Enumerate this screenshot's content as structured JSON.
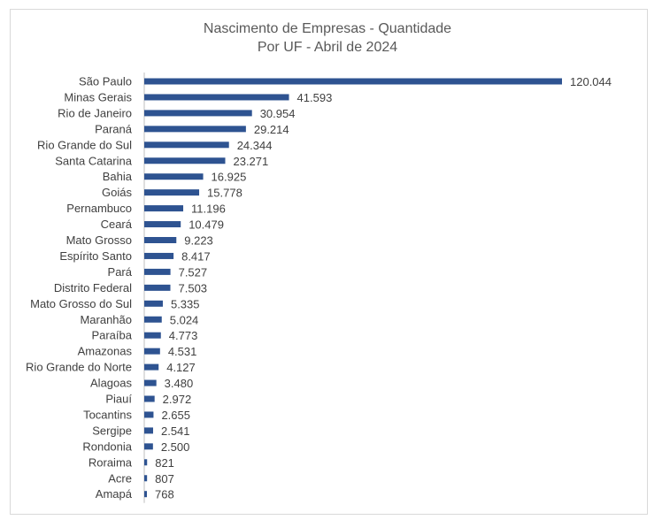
{
  "chart_data": {
    "type": "bar",
    "orientation": "horizontal",
    "title": "Nascimento de Empresas - Quantidade",
    "subtitle": "Por UF - Abril de 2024",
    "categories": [
      "São Paulo",
      "Minas Gerais",
      "Rio de Janeiro",
      "Paraná",
      "Rio Grande do Sul",
      "Santa Catarina",
      "Bahia",
      "Goiás",
      "Pernambuco",
      "Ceará",
      "Mato Grosso",
      "Espírito Santo",
      "Pará",
      "Distrito Federal",
      "Mato Grosso do Sul",
      "Maranhão",
      "Paraíba",
      "Amazonas",
      "Rio Grande do Norte",
      "Alagoas",
      "Piauí",
      "Tocantins",
      "Sergipe",
      "Rondonia",
      "Roraima",
      "Acre",
      "Amapá"
    ],
    "values": [
      120044,
      41593,
      30954,
      29214,
      24344,
      23271,
      16925,
      15778,
      11196,
      10479,
      9223,
      8417,
      7527,
      7503,
      5335,
      5024,
      4773,
      4531,
      4127,
      3480,
      2972,
      2655,
      2541,
      2500,
      821,
      807,
      768
    ],
    "value_labels": [
      "120.044",
      "41.593",
      "30.954",
      "29.214",
      "24.344",
      "23.271",
      "16.925",
      "15.778",
      "11.196",
      "10.479",
      "9.223",
      "8.417",
      "7.527",
      "7.503",
      "5.335",
      "5.024",
      "4.773",
      "4.531",
      "4.127",
      "3.480",
      "2.972",
      "2.655",
      "2.541",
      "2.500",
      "821",
      "807",
      "768"
    ],
    "bar_color": "#2e5391",
    "xlim": [
      0,
      120044
    ],
    "grid": false,
    "legend": "none"
  }
}
